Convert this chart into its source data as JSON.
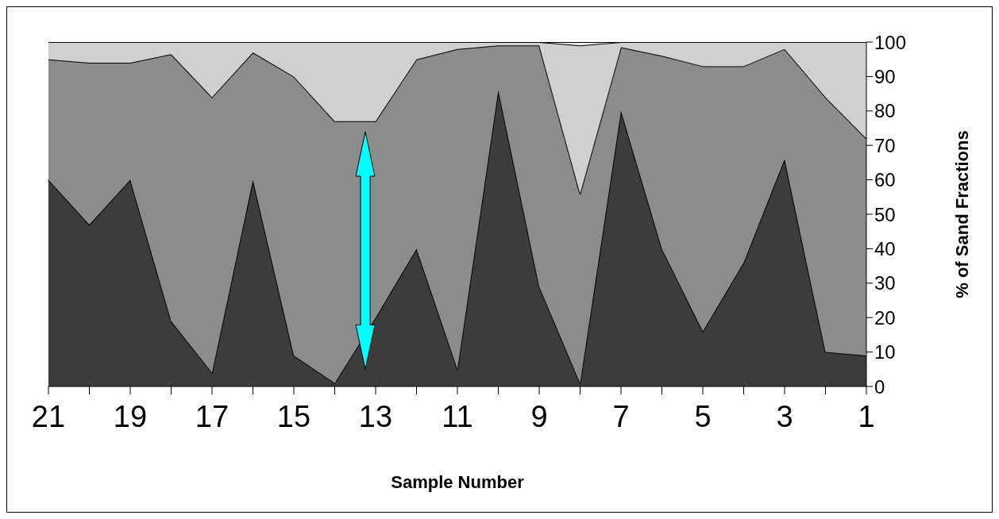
{
  "chart_data": {
    "type": "area",
    "stacked": true,
    "xlabel": "Sample Number",
    "ylabel": "% of Sand Fractions",
    "categories": [
      "21",
      null,
      "19",
      null,
      "17",
      null,
      "15",
      null,
      "13",
      null,
      "11",
      null,
      "9",
      null,
      "7",
      null,
      "5",
      null,
      "3",
      null,
      "1"
    ],
    "series": [
      {
        "color": "#3c3c3c",
        "values": [
          60,
          47,
          60,
          19,
          4,
          60,
          9,
          1,
          20,
          40,
          5,
          86,
          29,
          1,
          80,
          40,
          16,
          36,
          66,
          10,
          9
        ]
      },
      {
        "color": "#8c8c8c",
        "values": [
          35,
          47,
          34,
          77.5,
          80,
          37,
          81,
          76,
          57,
          55,
          93,
          13,
          70,
          55,
          18.5,
          56,
          77,
          57,
          32,
          74,
          63
        ]
      },
      {
        "color": "#d0d0d0",
        "values": [
          5,
          6,
          6,
          3.5,
          16,
          3,
          10,
          23,
          23,
          5,
          2,
          1,
          1,
          43,
          1.5,
          4,
          7,
          7,
          2,
          16,
          28
        ]
      },
      {
        "color": "#e8e8e8",
        "values": [
          0,
          0,
          0,
          0,
          0,
          0,
          0,
          0,
          0,
          0,
          0,
          0,
          0,
          1,
          0,
          0,
          0,
          0,
          0,
          0,
          0
        ]
      }
    ],
    "ylim": [
      0,
      100
    ],
    "yticks": [
      0,
      10,
      20,
      30,
      40,
      50,
      60,
      70,
      80,
      90,
      100
    ],
    "grid": false
  }
}
